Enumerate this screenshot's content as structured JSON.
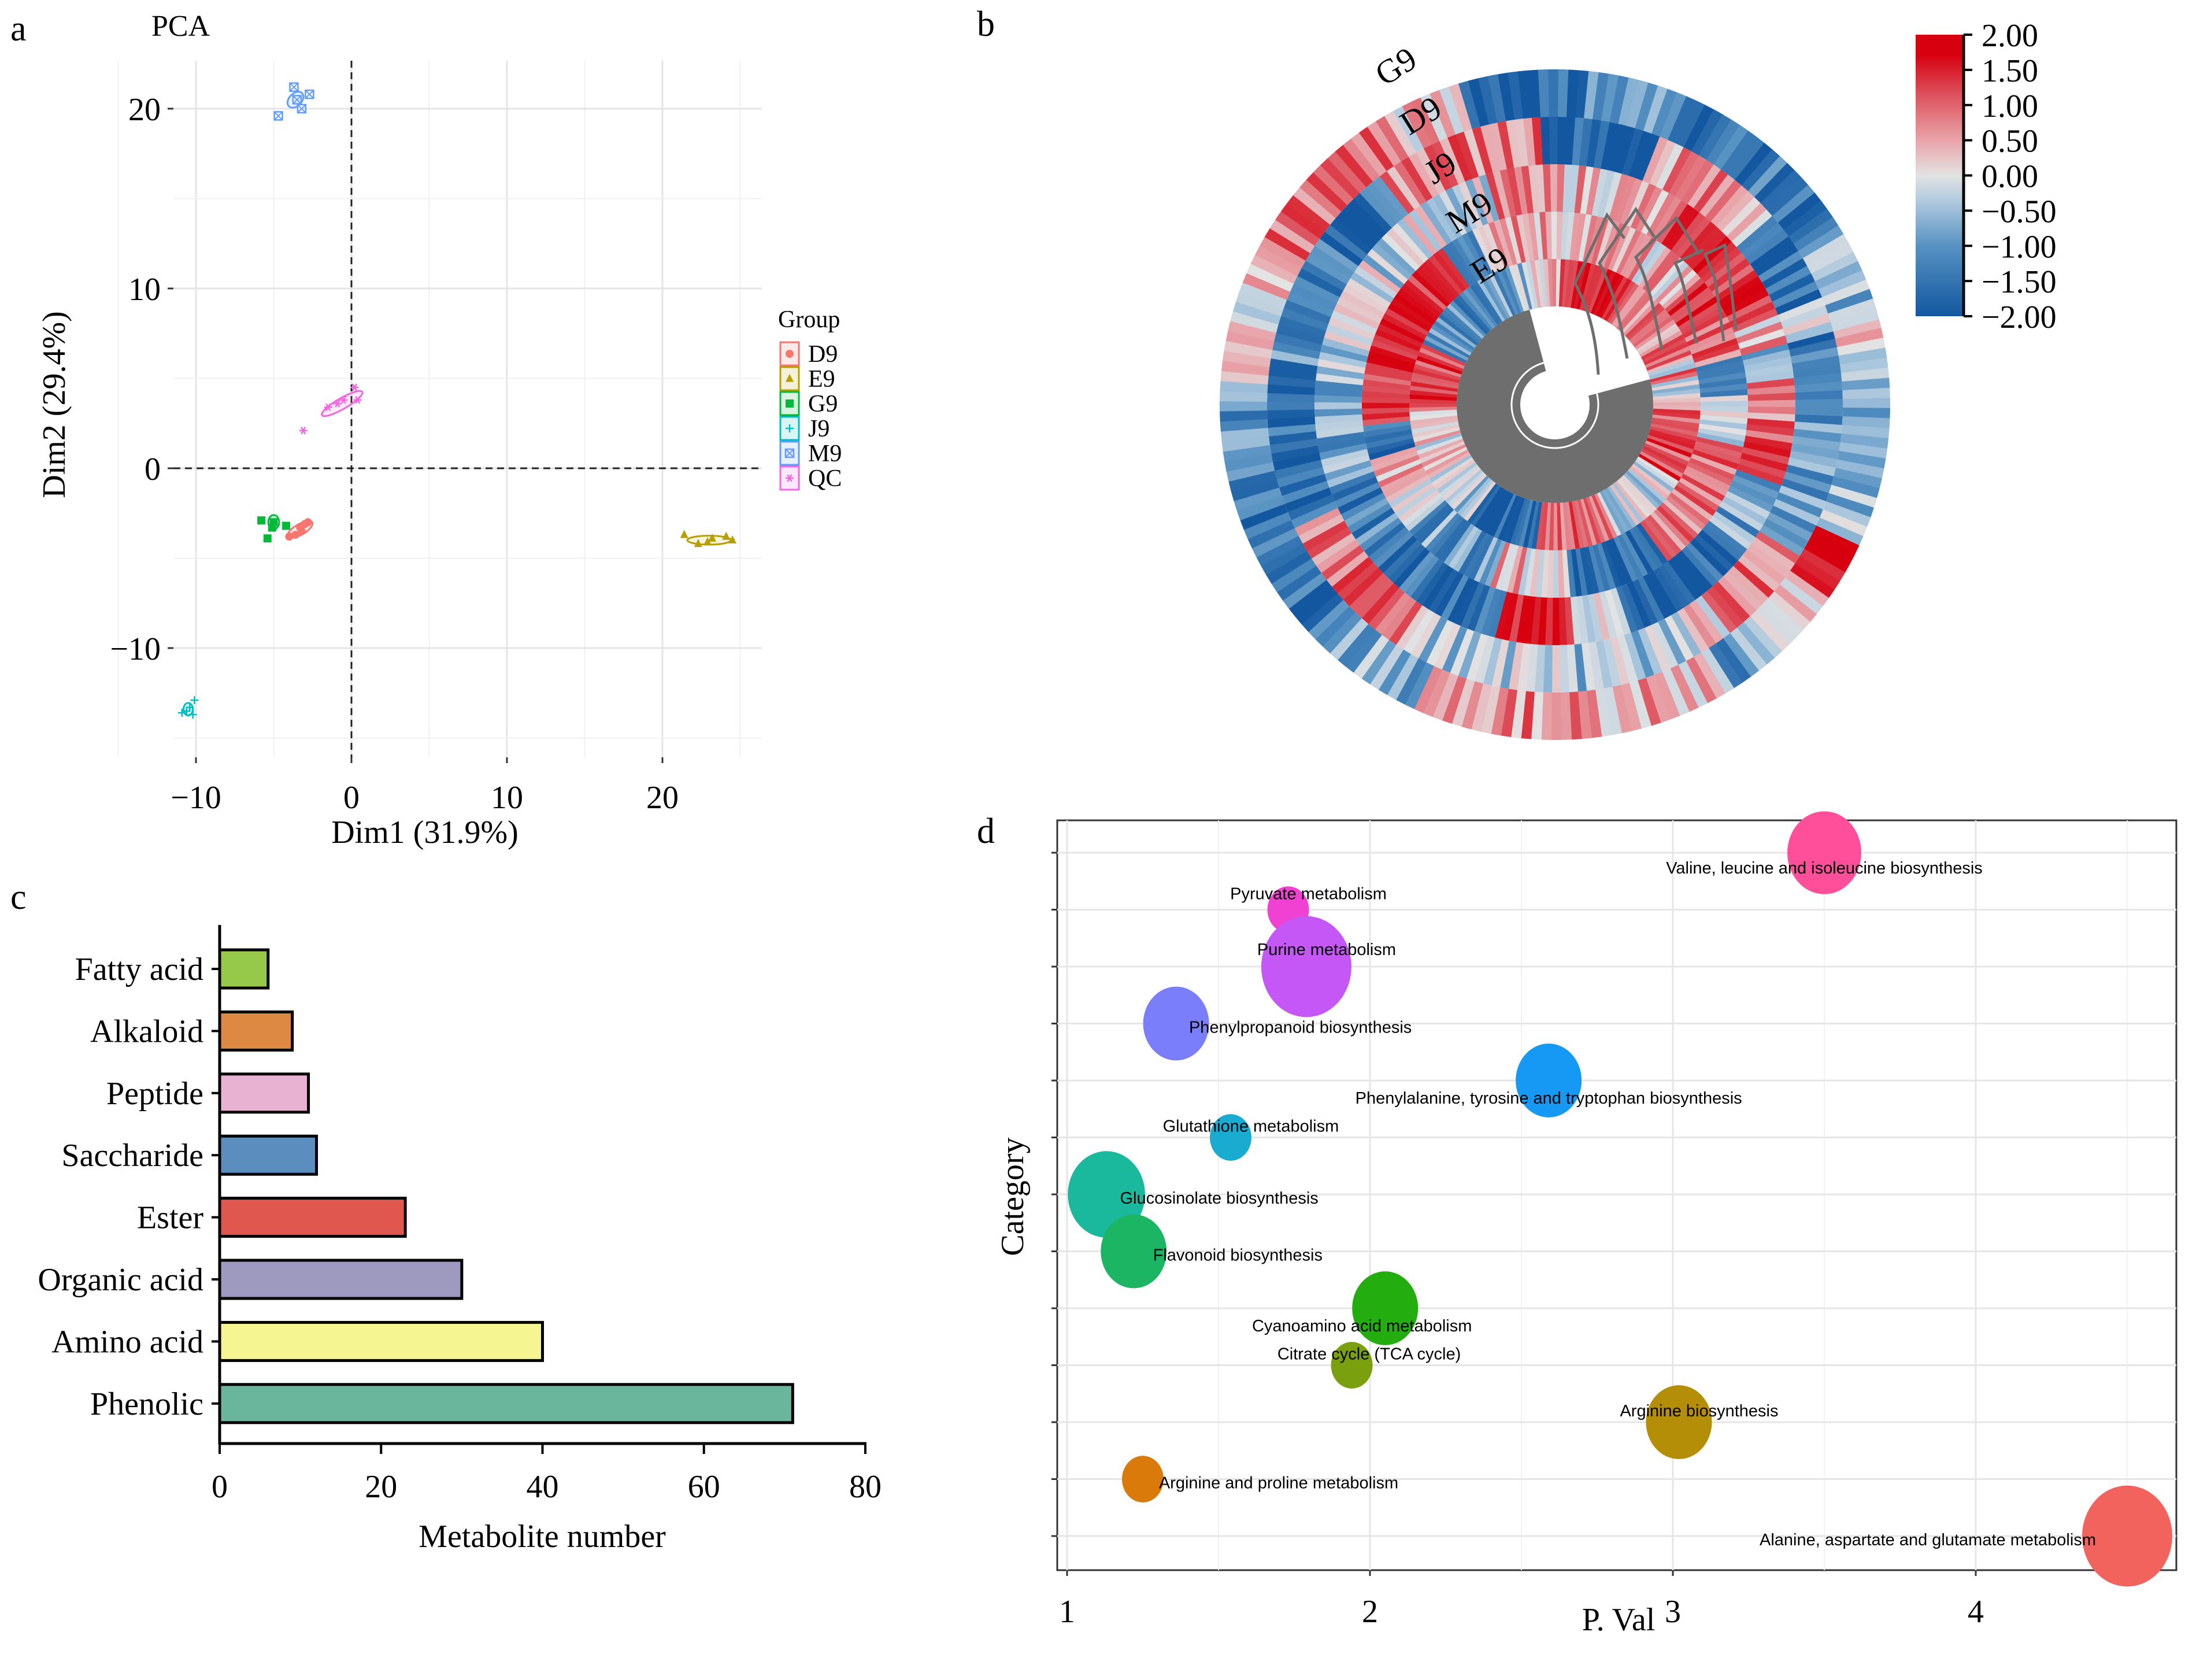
{
  "panels": {
    "a": {
      "label": "a"
    },
    "b": {
      "label": "b"
    },
    "c": {
      "label": "c"
    },
    "d": {
      "label": "d"
    }
  },
  "chart_data": [
    {
      "id": "pca",
      "type": "scatter",
      "title": "PCA",
      "xlabel": "Dim1 (31.9%)",
      "ylabel": "Dim2 (29.4%)",
      "xlim": [
        -12.8,
        26.5
      ],
      "ylim": [
        -15.5,
        22.5
      ],
      "xticks": [
        -10,
        0,
        10,
        20
      ],
      "yticks": [
        -10,
        0,
        10,
        20
      ],
      "xtick_labels": [
        "−10",
        "0",
        "10",
        "20"
      ],
      "ytick_labels": [
        "−10",
        "0",
        "10",
        "20"
      ],
      "grid": true,
      "reference_lines": {
        "x": 0,
        "y": 0
      },
      "legend": {
        "title": "Group",
        "position": "right"
      },
      "series": [
        {
          "name": "D9",
          "color": "#F8766D",
          "marker": "circle",
          "points": [
            [
              -3.3,
              -3.3
            ],
            [
              -3.0,
              -3.1
            ],
            [
              -2.8,
              -3.0
            ],
            [
              -3.6,
              -3.7
            ],
            [
              -4.0,
              -3.8
            ],
            [
              -3.2,
              -3.5
            ]
          ],
          "ellipse": {
            "cx": -3.3,
            "cy": -3.4,
            "rx": 0.9,
            "ry": 0.3,
            "angle": -30
          }
        },
        {
          "name": "E9",
          "color": "#B79F00",
          "marker": "triangle",
          "points": [
            [
              21.4,
              -3.7
            ],
            [
              22.3,
              -4.2
            ],
            [
              23.2,
              -3.9
            ],
            [
              24.1,
              -3.8
            ],
            [
              24.5,
              -4.0
            ],
            [
              22.9,
              -4.1
            ]
          ],
          "ellipse": {
            "cx": 23.0,
            "cy": -4.0,
            "rx": 1.4,
            "ry": 0.25,
            "angle": 0
          }
        },
        {
          "name": "G9",
          "color": "#00BA38",
          "marker": "square",
          "points": [
            [
              -5.8,
              -2.9
            ],
            [
              -5.0,
              -3.0
            ],
            [
              -4.2,
              -3.2
            ],
            [
              -5.4,
              -3.9
            ],
            [
              -5.1,
              -3.3
            ]
          ],
          "ellipse": {
            "cx": -5.0,
            "cy": -3.0,
            "rx": 0.35,
            "ry": 0.4,
            "angle": 0
          }
        },
        {
          "name": "J9",
          "color": "#00BFC4",
          "marker": "plus",
          "points": [
            [
              -10.1,
              -12.9
            ],
            [
              -10.6,
              -13.5
            ],
            [
              -10.2,
              -13.7
            ],
            [
              -10.9,
              -13.6
            ],
            [
              -10.4,
              -13.3
            ]
          ],
          "ellipse": {
            "cx": -10.5,
            "cy": -13.4,
            "rx": 0.3,
            "ry": 0.35,
            "angle": 0
          }
        },
        {
          "name": "M9",
          "color": "#619CFF",
          "marker": "boxcross",
          "points": [
            [
              -3.7,
              21.2
            ],
            [
              -2.7,
              20.8
            ],
            [
              -3.5,
              20.5
            ],
            [
              -3.2,
              20.0
            ],
            [
              -4.7,
              19.6
            ]
          ],
          "ellipse": {
            "cx": -3.6,
            "cy": 20.5,
            "rx": 0.6,
            "ry": 0.35,
            "angle": -45
          }
        },
        {
          "name": "QC",
          "color": "#F564E3",
          "marker": "asterisk",
          "points": [
            [
              0.2,
              4.5
            ],
            [
              0.4,
              3.8
            ],
            [
              -0.5,
              3.8
            ],
            [
              -1.5,
              3.4
            ],
            [
              -0.9,
              3.6
            ],
            [
              -3.1,
              2.1
            ]
          ],
          "ellipse": {
            "cx": -0.6,
            "cy": 3.6,
            "rx": 1.5,
            "ry": 0.3,
            "angle": -30
          }
        }
      ]
    },
    {
      "id": "circular-heatmap",
      "type": "heatmap",
      "layout": "circular",
      "rows": [
        "G9",
        "D9",
        "J9",
        "M9",
        "E9"
      ],
      "row_order_outer_to_inner": [
        "G9",
        "D9",
        "J9",
        "M9",
        "E9"
      ],
      "color_scale": {
        "min": -2.0,
        "max": 2.0,
        "colors": [
          "#1257A0",
          "#5792C2",
          "#A9C6DD",
          "#E3E3E3",
          "#E8A6AB",
          "#DD5560",
          "#D7000F"
        ],
        "ticks": [
          2.0,
          1.5,
          1.0,
          0.5,
          0.0,
          -0.5,
          -1.0,
          -1.5,
          -2.0
        ],
        "tick_labels": [
          "2.00",
          "1.50",
          "1.00",
          "0.50",
          "0.00",
          "−0.50",
          "−1.00",
          "−1.50",
          "−2.00"
        ]
      },
      "column_dendrogram": true,
      "row_dendrogram": true
    },
    {
      "id": "metabolite-bar",
      "type": "bar",
      "orientation": "horizontal",
      "categories": [
        "Fatty acid",
        "Alkaloid",
        "Peptide",
        "Saccharide",
        "Ester",
        "Organic acid",
        "Amino acid",
        "Phenolic"
      ],
      "values": [
        6,
        9,
        11,
        12,
        23,
        30,
        40,
        71
      ],
      "colors": [
        "#96C84A",
        "#DE8943",
        "#E8B2D2",
        "#5B8DBE",
        "#E0574F",
        "#9E99BE",
        "#F5F592",
        "#6AB69C"
      ],
      "xlabel": "Metabolite number",
      "ylabel": "",
      "xlim": [
        0,
        80
      ],
      "xticks": [
        0,
        20,
        40,
        60,
        80
      ],
      "grid": false
    },
    {
      "id": "pathway-bubble",
      "type": "scatter",
      "subtype": "bubble",
      "xlabel": "P. Val",
      "ylabel": "Category",
      "xlim": [
        0.97,
        4.66
      ],
      "xticks": [
        1,
        2,
        3,
        4
      ],
      "grid": true,
      "points": [
        {
          "label": "Valine, leucine and isoleucine biosynthesis",
          "x": 3.5,
          "rank": 13,
          "size": 3,
          "color": "#FF4F9A"
        },
        {
          "label": "Pyruvate metabolism",
          "x": 1.73,
          "rank": 12,
          "size": 1,
          "color": "#F041D3"
        },
        {
          "label": "Purine metabolism",
          "x": 1.79,
          "rank": 11,
          "size": 4,
          "color": "#C457F5"
        },
        {
          "label": "Phenylpropanoid biosynthesis",
          "x": 1.36,
          "rank": 10,
          "size": 2.5,
          "color": "#7A7EFA"
        },
        {
          "label": "Phenylalanine, tyrosine and tryptophan biosynthesis",
          "x": 2.59,
          "rank": 9,
          "size": 2.5,
          "color": "#1699F5"
        },
        {
          "label": "Glutathione metabolism",
          "x": 1.54,
          "rank": 8,
          "size": 1,
          "color": "#19ABD0"
        },
        {
          "label": "Glucosinolate biosynthesis",
          "x": 1.13,
          "rank": 7,
          "size": 3.2,
          "color": "#1AB99D"
        },
        {
          "label": "Flavonoid biosynthesis",
          "x": 1.22,
          "rank": 6,
          "size": 2.5,
          "color": "#1BB564"
        },
        {
          "label": "Cyanoamino acid metabolism",
          "x": 2.05,
          "rank": 5,
          "size": 2.5,
          "color": "#23AD0F"
        },
        {
          "label": "Citrate cycle (TCA cycle)",
          "x": 1.94,
          "rank": 4,
          "size": 1,
          "color": "#7BA00F"
        },
        {
          "label": "Arginine biosynthesis",
          "x": 3.02,
          "rank": 3,
          "size": 2.5,
          "color": "#B48E07"
        },
        {
          "label": "Arginine and proline metabolism",
          "x": 1.25,
          "rank": 2,
          "size": 1,
          "color": "#D97A0B"
        },
        {
          "label": "Alanine, aspartate and glutamate metabolism",
          "x": 4.5,
          "rank": 1,
          "size": 4,
          "color": "#F2635E"
        }
      ]
    }
  ]
}
